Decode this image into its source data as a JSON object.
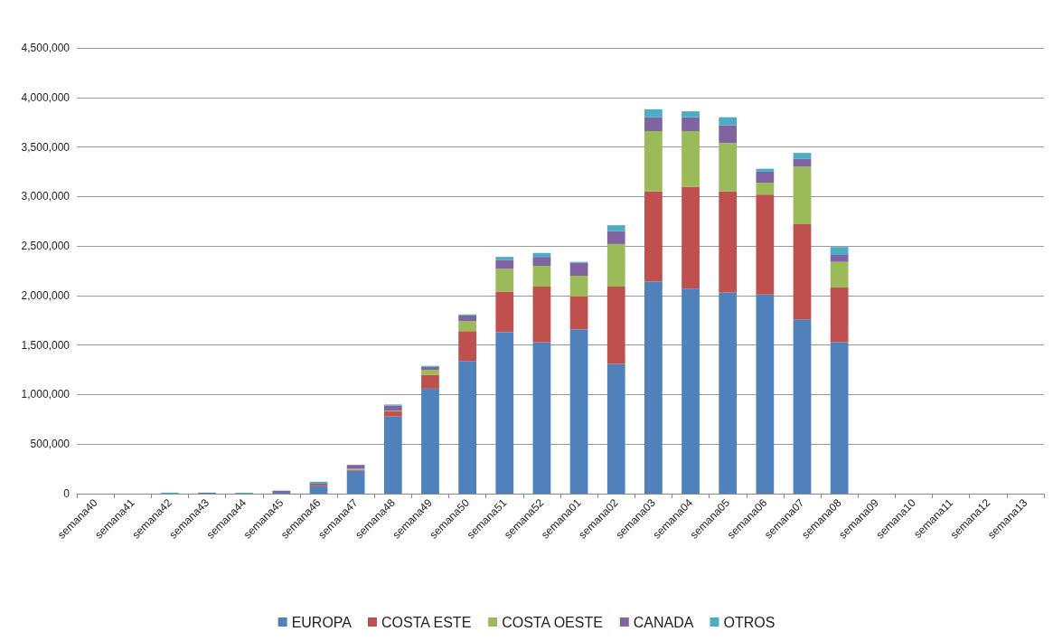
{
  "chart_data": {
    "type": "bar",
    "stacked": true,
    "categories": [
      "semana40",
      "semana41",
      "semana42",
      "semana43",
      "semana44",
      "semana45",
      "semana46",
      "semana47",
      "semana48",
      "semana49",
      "semana50",
      "semana51",
      "semana52",
      "semana01",
      "semana02",
      "semana03",
      "semana04",
      "semana05",
      "semana06",
      "semana07",
      "semana08",
      "semana09",
      "semana10",
      "semana11",
      "semana12",
      "semana13"
    ],
    "series": [
      {
        "name": "EUROPA",
        "color": "#4f81bd",
        "values": [
          0,
          0,
          0,
          10000,
          0,
          10000,
          80000,
          230000,
          780000,
          1060000,
          1340000,
          1630000,
          1530000,
          1660000,
          1310000,
          2140000,
          2070000,
          2030000,
          2010000,
          1760000,
          1530000,
          0,
          0,
          0,
          0,
          0
        ]
      },
      {
        "name": "COSTA ESTE",
        "color": "#c0504d",
        "values": [
          0,
          0,
          0,
          0,
          0,
          0,
          20000,
          10000,
          50000,
          140000,
          300000,
          410000,
          560000,
          330000,
          780000,
          910000,
          1030000,
          1020000,
          1010000,
          960000,
          550000,
          0,
          0,
          0,
          0,
          0
        ]
      },
      {
        "name": "COSTA OESTE",
        "color": "#9bbb59",
        "values": [
          0,
          0,
          0,
          0,
          0,
          0,
          0,
          10000,
          10000,
          50000,
          100000,
          230000,
          210000,
          210000,
          430000,
          610000,
          560000,
          490000,
          120000,
          580000,
          260000,
          0,
          0,
          0,
          0,
          0
        ]
      },
      {
        "name": "CANADA",
        "color": "#8064a2",
        "values": [
          0,
          0,
          0,
          0,
          0,
          20000,
          0,
          40000,
          50000,
          30000,
          60000,
          90000,
          90000,
          130000,
          130000,
          140000,
          140000,
          180000,
          110000,
          80000,
          70000,
          0,
          0,
          0,
          0,
          0
        ]
      },
      {
        "name": "OTROS",
        "color": "#4bacc6",
        "values": [
          0,
          0,
          10000,
          0,
          10000,
          0,
          20000,
          0,
          10000,
          10000,
          10000,
          30000,
          40000,
          10000,
          60000,
          80000,
          60000,
          80000,
          30000,
          60000,
          80000,
          0,
          0,
          0,
          0,
          0
        ]
      }
    ],
    "ylim": [
      0,
      4500000
    ],
    "yticks": [
      0,
      {
        "value": 500000,
        "label": "500,000"
      },
      {
        "value": 1000000,
        "label": "1,000,000"
      },
      {
        "value": 1500000,
        "label": "1,500,000"
      },
      {
        "value": 2000000,
        "label": "2,000,000"
      },
      {
        "value": 2500000,
        "label": "2,500,000"
      },
      {
        "value": 3000000,
        "label": "3,000,000"
      },
      {
        "value": 3500000,
        "label": "3,500,000"
      },
      {
        "value": 4000000,
        "label": "4,000,000"
      },
      {
        "value": 4500000,
        "label": "4,500,000"
      }
    ],
    "grid": "y",
    "legend": "bottom"
  }
}
